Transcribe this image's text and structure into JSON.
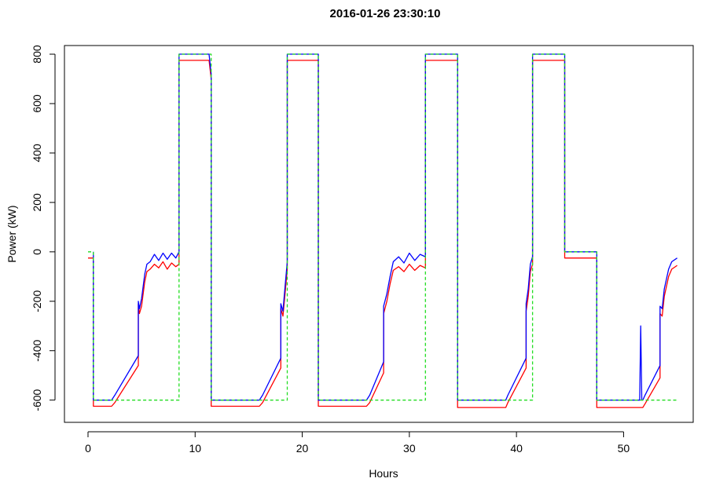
{
  "chart_data": {
    "type": "line",
    "title": "2016-01-26 23:30:10",
    "xlabel": "Hours",
    "ylabel": "Power (kW)",
    "xlim": [
      -2.2,
      56.5
    ],
    "ylim": [
      -690,
      835
    ],
    "xticks": [
      0,
      10,
      20,
      30,
      40,
      50
    ],
    "yticks": [
      -600,
      -400,
      -200,
      0,
      200,
      400,
      600,
      800
    ],
    "grid": false,
    "legend": "none",
    "series": [
      {
        "color": "#ff0000",
        "dash": "solid",
        "points": [
          [
            0,
            -25
          ],
          [
            0.5,
            -25
          ],
          [
            0.5,
            -625
          ],
          [
            2.2,
            -625
          ],
          [
            2.5,
            -610
          ],
          [
            4.7,
            -460
          ],
          [
            4.7,
            -210
          ],
          [
            4.8,
            -250
          ],
          [
            5.0,
            -220
          ],
          [
            5.3,
            -120
          ],
          [
            5.5,
            -80
          ],
          [
            5.8,
            -70
          ],
          [
            6.2,
            -50
          ],
          [
            6.6,
            -65
          ],
          [
            7.0,
            -40
          ],
          [
            7.4,
            -70
          ],
          [
            7.8,
            -45
          ],
          [
            8.2,
            -60
          ],
          [
            8.5,
            -50
          ],
          [
            8.5,
            775
          ],
          [
            11.3,
            775
          ],
          [
            11.5,
            700
          ],
          [
            11.5,
            -625
          ],
          [
            16.0,
            -625
          ],
          [
            16.3,
            -610
          ],
          [
            18.0,
            -470
          ],
          [
            18.0,
            -230
          ],
          [
            18.2,
            -260
          ],
          [
            18.4,
            -170
          ],
          [
            18.6,
            -70
          ],
          [
            18.6,
            775
          ],
          [
            21.5,
            775
          ],
          [
            21.5,
            -625
          ],
          [
            26.0,
            -625
          ],
          [
            26.3,
            -610
          ],
          [
            27.6,
            -490
          ],
          [
            27.6,
            -250
          ],
          [
            27.9,
            -200
          ],
          [
            28.2,
            -130
          ],
          [
            28.5,
            -75
          ],
          [
            29.0,
            -60
          ],
          [
            29.5,
            -80
          ],
          [
            30.0,
            -50
          ],
          [
            30.5,
            -75
          ],
          [
            31.0,
            -55
          ],
          [
            31.5,
            -65
          ],
          [
            31.5,
            775
          ],
          [
            34.5,
            775
          ],
          [
            34.5,
            -630
          ],
          [
            39.0,
            -630
          ],
          [
            39.2,
            -610
          ],
          [
            40.9,
            -470
          ],
          [
            40.9,
            -240
          ],
          [
            41.1,
            -180
          ],
          [
            41.3,
            -80
          ],
          [
            41.5,
            -50
          ],
          [
            41.5,
            775
          ],
          [
            44.5,
            775
          ],
          [
            44.5,
            -25
          ],
          [
            47.5,
            -25
          ],
          [
            47.5,
            -630
          ],
          [
            51.8,
            -630
          ],
          [
            52.0,
            -615
          ],
          [
            53.4,
            -510
          ],
          [
            53.4,
            -250
          ],
          [
            53.6,
            -260
          ],
          [
            53.8,
            -180
          ],
          [
            54.2,
            -100
          ],
          [
            54.5,
            -70
          ],
          [
            55.0,
            -55
          ]
        ]
      },
      {
        "color": "#0000ff",
        "dash": "solid",
        "points": [
          [
            0.5,
            0
          ],
          [
            0.5,
            -600
          ],
          [
            2.2,
            -600
          ],
          [
            2.5,
            -580
          ],
          [
            4.7,
            -420
          ],
          [
            4.7,
            -200
          ],
          [
            4.8,
            -230
          ],
          [
            5.0,
            -190
          ],
          [
            5.3,
            -90
          ],
          [
            5.5,
            -50
          ],
          [
            5.8,
            -40
          ],
          [
            6.2,
            -10
          ],
          [
            6.6,
            -35
          ],
          [
            7.0,
            -5
          ],
          [
            7.4,
            -30
          ],
          [
            7.8,
            -5
          ],
          [
            8.2,
            -25
          ],
          [
            8.5,
            0
          ],
          [
            8.5,
            800
          ],
          [
            11.3,
            800
          ],
          [
            11.5,
            720
          ],
          [
            11.5,
            -600
          ],
          [
            16.0,
            -600
          ],
          [
            16.3,
            -580
          ],
          [
            18.0,
            -430
          ],
          [
            18.0,
            -210
          ],
          [
            18.2,
            -240
          ],
          [
            18.4,
            -140
          ],
          [
            18.6,
            -40
          ],
          [
            18.6,
            800
          ],
          [
            21.5,
            800
          ],
          [
            21.5,
            -600
          ],
          [
            26.0,
            -600
          ],
          [
            26.3,
            -580
          ],
          [
            27.6,
            -445
          ],
          [
            27.6,
            -220
          ],
          [
            27.9,
            -170
          ],
          [
            28.2,
            -100
          ],
          [
            28.5,
            -40
          ],
          [
            29.0,
            -20
          ],
          [
            29.5,
            -45
          ],
          [
            30.0,
            -5
          ],
          [
            30.5,
            -35
          ],
          [
            31.0,
            -10
          ],
          [
            31.5,
            -20
          ],
          [
            31.5,
            800
          ],
          [
            34.5,
            800
          ],
          [
            34.5,
            -600
          ],
          [
            39.0,
            -600
          ],
          [
            39.2,
            -580
          ],
          [
            40.9,
            -430
          ],
          [
            40.9,
            -210
          ],
          [
            41.1,
            -150
          ],
          [
            41.3,
            -50
          ],
          [
            41.5,
            -20
          ],
          [
            41.5,
            800
          ],
          [
            44.5,
            800
          ],
          [
            44.5,
            0
          ],
          [
            47.5,
            0
          ],
          [
            47.5,
            -600
          ],
          [
            51.5,
            -600
          ],
          [
            51.6,
            -300
          ],
          [
            51.7,
            -600
          ],
          [
            51.8,
            -600
          ],
          [
            52.0,
            -580
          ],
          [
            53.4,
            -460
          ],
          [
            53.4,
            -220
          ],
          [
            53.6,
            -230
          ],
          [
            53.8,
            -150
          ],
          [
            54.2,
            -70
          ],
          [
            54.5,
            -40
          ],
          [
            55.0,
            -25
          ]
        ]
      },
      {
        "color": "#22dd22",
        "dash": "dashed",
        "points": [
          [
            0,
            0
          ],
          [
            0.5,
            0
          ],
          [
            0.5,
            -600
          ],
          [
            8.5,
            -600
          ],
          [
            8.5,
            800
          ],
          [
            11.5,
            800
          ],
          [
            11.5,
            -600
          ],
          [
            18.6,
            -600
          ],
          [
            18.6,
            800
          ],
          [
            21.5,
            800
          ],
          [
            21.5,
            -600
          ],
          [
            31.5,
            -600
          ],
          [
            31.5,
            800
          ],
          [
            34.5,
            800
          ],
          [
            34.5,
            -600
          ],
          [
            41.5,
            -600
          ],
          [
            41.5,
            800
          ],
          [
            44.5,
            800
          ],
          [
            44.5,
            0
          ],
          [
            47.5,
            0
          ],
          [
            47.5,
            -600
          ],
          [
            55.0,
            -600
          ]
        ]
      }
    ]
  }
}
